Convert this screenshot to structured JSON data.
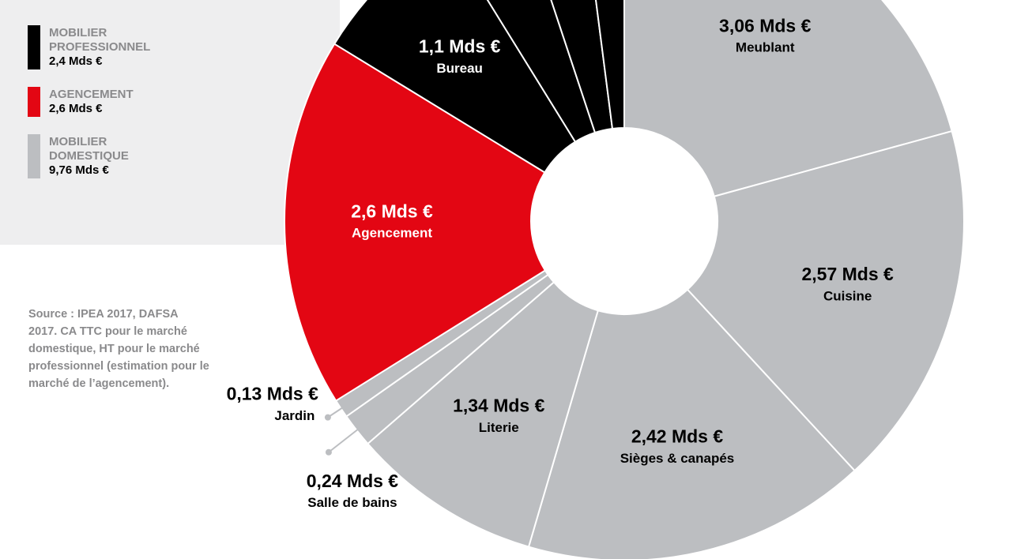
{
  "chart_data": {
    "type": "donut",
    "categories": [
      "Meublant",
      "Cuisine",
      "Sièges & canapés",
      "Literie",
      "Salle de bains",
      "Jardin",
      "Agencement",
      "Bureau",
      null,
      null,
      null
    ],
    "values": [
      3.06,
      2.57,
      2.42,
      1.34,
      0.24,
      0.13,
      2.6,
      1.1,
      0.55,
      0.45,
      0.3
    ],
    "value_labels": [
      "3,06 Mds €",
      "2,57 Mds €",
      "2,42 Mds €",
      "1,34 Mds €",
      "0,24 Mds €",
      "0,13 Mds €",
      "2,6 Mds €",
      "1,1 Mds €",
      null,
      null,
      null
    ],
    "colors": [
      "#bcbec1",
      "#bcbec1",
      "#bcbec1",
      "#bcbec1",
      "#bcbec1",
      "#bcbec1",
      "#e30613",
      "#000000",
      "#000000",
      "#000000",
      "#000000"
    ],
    "legend": [
      {
        "name": [
          "MOBILIER",
          "PROFESSIONNEL"
        ],
        "value": 2.4,
        "value_label": "2,4 Mds €",
        "color": "#000000"
      },
      {
        "name": [
          "AGENCEMENT"
        ],
        "value": 2.6,
        "value_label": "2,6 Mds €",
        "color": "#e30613"
      },
      {
        "name": [
          "MOBILIER",
          "DOMESTIQUE"
        ],
        "value": 9.76,
        "value_label": "9,76 Mds €",
        "color": "#bcbec1"
      }
    ],
    "source": [
      "Source : IPEA 2017, DAFSA",
      "2017. CA TTC pour le marché",
      "domestique, HT pour le marché",
      "professionnel (estimation pour le",
      "marché de l’agencement)."
    ]
  }
}
